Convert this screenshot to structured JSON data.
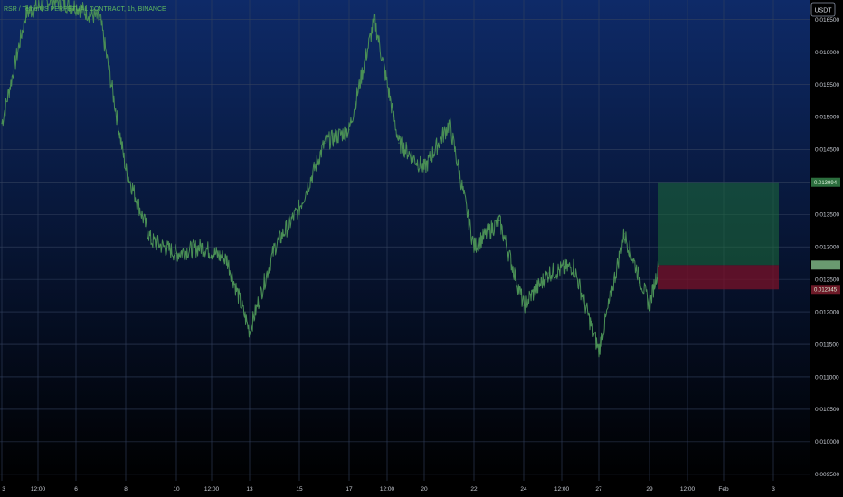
{
  "chart_data": {
    "type": "line",
    "title": "RSR / TetherUS PERPETUAL CONTRACT, 1h, BINANCE",
    "unit_label": "USDT",
    "colors": {
      "background_top": "#0e2a68",
      "background_bottom": "#000000",
      "price_line": "#4a8f55",
      "grid": "#33415e",
      "target_zone": "#1e6e3a",
      "stop_zone": "#7a1228"
    },
    "ylim": [
      0.0094,
      0.0168
    ],
    "y_ticks": [
      "0.016500",
      "0.016000",
      "0.015500",
      "0.015000",
      "0.014500",
      "0.014000",
      "0.013500",
      "0.013000",
      "0.012500",
      "0.012000",
      "0.011500",
      "0.011000",
      "0.010500",
      "0.010000",
      "0.009500"
    ],
    "x_ticks": [
      "3",
      "12:00",
      "6",
      "8",
      "10",
      "12:00",
      "13",
      "15",
      "17",
      "12:00",
      "20",
      "22",
      "24",
      "12:00",
      "27",
      "29",
      "12:00",
      "Feb",
      "3"
    ],
    "series": [
      {
        "x": [
          "Jan 3",
          "Jan 4",
          "Jan 5",
          "Jan 6",
          "Jan 7",
          "Jan 8",
          "Jan 9",
          "Jan 10",
          "Jan 11",
          "Jan 12",
          "Jan 13",
          "Jan 14",
          "Jan 15",
          "Jan 16",
          "Jan 17",
          "Jan 18",
          "Jan 19",
          "Jan 20",
          "Jan 21",
          "Jan 22",
          "Jan 23",
          "Jan 24",
          "Jan 25",
          "Jan 26",
          "Jan 27",
          "Jan 28",
          "Jan 29",
          "Jan 29 12:00"
        ],
        "values": [
          0.0149,
          0.0166,
          0.0168,
          0.0167,
          0.0165,
          0.0142,
          0.0131,
          0.0129,
          0.013,
          0.0128,
          0.0117,
          0.013,
          0.0136,
          0.0146,
          0.0148,
          0.0165,
          0.0146,
          0.0142,
          0.0149,
          0.013,
          0.0134,
          0.0121,
          0.0126,
          0.0127,
          0.0114,
          0.0132,
          0.0121,
          0.0127
        ]
      }
    ],
    "position": {
      "type": "long",
      "entry": 0.01272,
      "target_label": "0.013994",
      "target": 0.013994,
      "stop_label": "0.012345",
      "stop": 0.012345,
      "start_x": "Jan 29 12:00",
      "end_x": "Feb 3"
    }
  }
}
